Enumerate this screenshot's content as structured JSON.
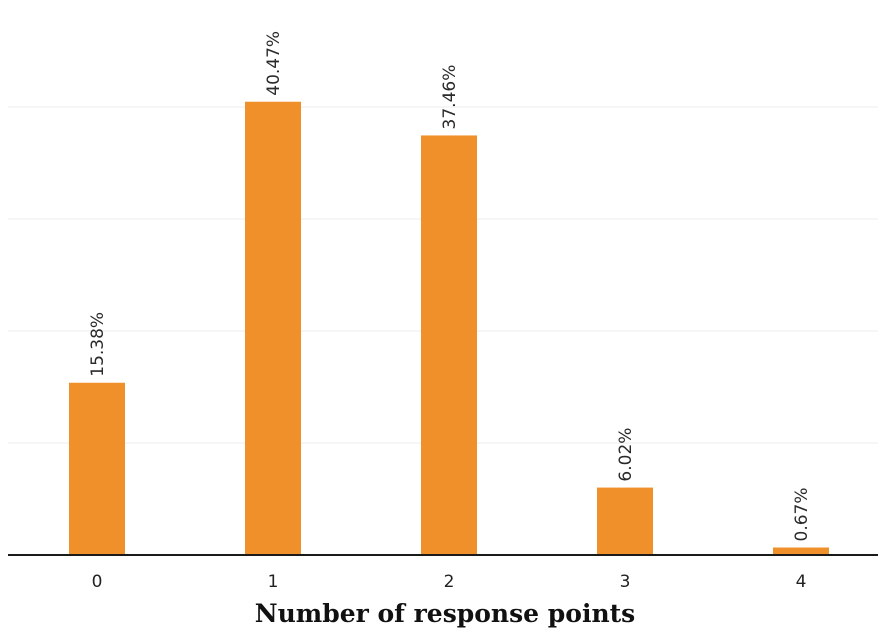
{
  "chart_data": {
    "type": "bar",
    "title": "",
    "xlabel": "Number of response points",
    "ylabel": "",
    "categories": [
      "0",
      "1",
      "2",
      "3",
      "4"
    ],
    "values": [
      15.38,
      40.47,
      37.46,
      6.02,
      0.67
    ],
    "data_labels": [
      "15.38%",
      "40.47%",
      "37.46%",
      "6.02%",
      "0.67%"
    ],
    "unit": "%",
    "ylim": [
      0,
      50
    ],
    "y_gridlines": [
      10,
      20,
      30,
      40
    ],
    "grid": true,
    "bar_color": "#f0902a"
  }
}
